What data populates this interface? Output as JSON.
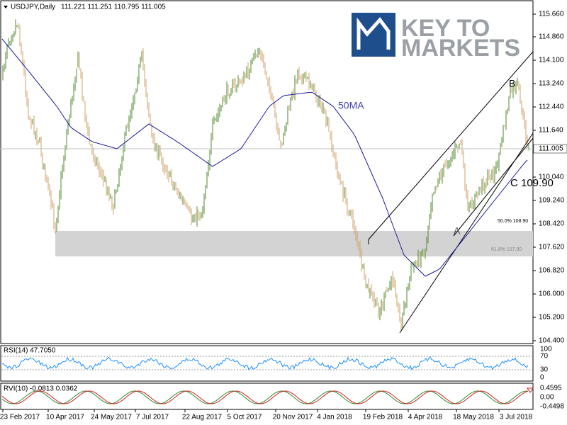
{
  "header": {
    "symbol": "USDJPY,Daily",
    "ohlc": "111.221 111.251 110.795 111.005"
  },
  "logo": {
    "line1": "KEY TO",
    "line2": "MARKETS"
  },
  "price_axis": [
    "115.660",
    "114.860",
    "114.100",
    "113.240",
    "112.440",
    "111.640",
    "110.040",
    "109.240",
    "108.420",
    "107.620",
    "106.820",
    "106.000",
    "105.200",
    "104.400"
  ],
  "current_price": "111.005",
  "annotations": {
    "ma": "50MA",
    "b": "B",
    "a": "A",
    "c": "C 109.90",
    "fib50": "50.0% 108.90",
    "fib618": "61.8% 107.90"
  },
  "rsi": {
    "label": "RSI(14) 47.7050",
    "axis": [
      "100",
      "70",
      "30",
      "0"
    ]
  },
  "rvi": {
    "label": "RVI(10) -0.0813 0.0362",
    "axis": [
      "0.4595",
      "0.00",
      "-0.4498"
    ]
  },
  "dates": [
    "23 Feb 2017",
    "10 Apr 2017",
    "24 May 2017",
    "7 Jul 2017",
    "22 Aug 2017",
    "5 Oct 2017",
    "20 Nov 2017",
    "4 Jan 2018",
    "19 Feb 2018",
    "4 Apr 2018",
    "18 May 2018",
    "3 Jul 2018"
  ]
}
